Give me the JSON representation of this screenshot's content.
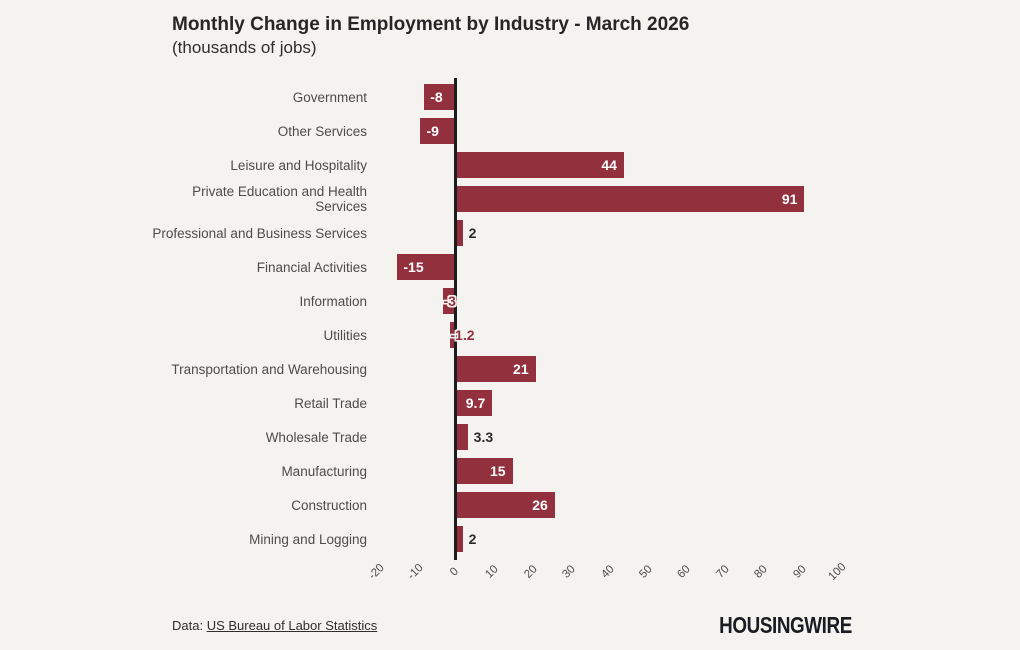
{
  "header": {
    "title": "Monthly Change in Employment by Industry - March 2026",
    "subtitle": "(thousands of jobs)"
  },
  "chart_data": {
    "type": "bar",
    "orientation": "horizontal",
    "title": "Monthly Change in Employment by Industry - March 2026",
    "subtitle": "(thousands of jobs)",
    "categories": [
      "Government",
      "Other Services",
      "Leisure and Hospitality",
      "Private Education and Health\nServices",
      "Professional and Business Services",
      "Financial Activities",
      "Information",
      "Utilities",
      "Transportation and Warehousing",
      "Retail Trade",
      "Wholesale Trade",
      "Manufacturing",
      "Construction",
      "Mining and Logging"
    ],
    "values": [
      -8,
      -9,
      44,
      91,
      2,
      -15,
      -3,
      -1.2,
      21,
      9.7,
      3.3,
      15,
      26,
      2
    ],
    "value_labels": [
      "-8",
      "-9",
      "44",
      "91",
      "2",
      "-15",
      "-3",
      "-1.2",
      "21",
      "9.7",
      "3.3",
      "15",
      "26",
      "2"
    ],
    "x_ticks": [
      -20,
      -10,
      0,
      10,
      20,
      30,
      40,
      50,
      60,
      70,
      80,
      90,
      100
    ],
    "xlim": [
      -20,
      100
    ],
    "grid": false,
    "legend": "none",
    "bar_color": "#93303e",
    "axis_line_color": "#1c1c1c",
    "background_color": "#f5f3f0"
  },
  "footer": {
    "data_prefix": "Data: ",
    "source_link": "US Bureau of Labor Statistics",
    "logo": "HOUSINGWIRE"
  }
}
